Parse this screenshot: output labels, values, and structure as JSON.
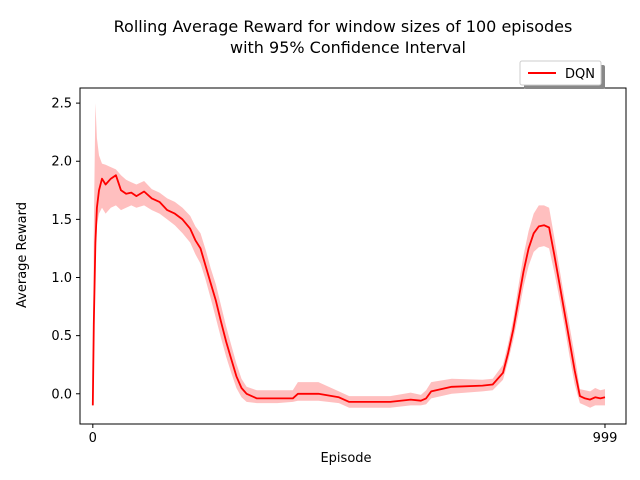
{
  "chart_data": {
    "type": "line",
    "title_line1": "Rolling Average Reward for window sizes of 100 episodes",
    "title_line2": "with 95% Confidence Interval",
    "xlabel": "Episode",
    "ylabel": "Average Reward",
    "xlim": [
      -25,
      1040
    ],
    "ylim": [
      -0.26,
      2.63
    ],
    "x_ticks": [
      0,
      999
    ],
    "x_tick_labels": [
      "0",
      "999"
    ],
    "y_ticks": [
      0.0,
      0.5,
      1.0,
      1.5,
      2.0,
      2.5
    ],
    "y_tick_labels": [
      "0.0",
      "0.5",
      "1.0",
      "1.5",
      "2.0",
      "2.5"
    ],
    "grid": false,
    "legend_position": "top-right, above axes",
    "series": [
      {
        "name": "DQN",
        "color": "#ff0000",
        "band_color": "#ff0000",
        "band_opacity": 0.25,
        "x": [
          0,
          2,
          5,
          8,
          12,
          18,
          25,
          35,
          45,
          55,
          65,
          75,
          85,
          100,
          115,
          130,
          145,
          160,
          175,
          190,
          200,
          210,
          220,
          230,
          240,
          250,
          260,
          270,
          280,
          290,
          300,
          320,
          360,
          390,
          400,
          440,
          480,
          500,
          540,
          580,
          620,
          640,
          650,
          660,
          700,
          760,
          780,
          800,
          810,
          820,
          830,
          840,
          850,
          860,
          870,
          880,
          890,
          900,
          910,
          920,
          930,
          940,
          950,
          960,
          970,
          980,
          990,
          999
        ],
        "y": [
          -0.1,
          0.6,
          1.3,
          1.6,
          1.75,
          1.85,
          1.8,
          1.85,
          1.88,
          1.75,
          1.72,
          1.73,
          1.7,
          1.74,
          1.68,
          1.65,
          1.58,
          1.55,
          1.5,
          1.42,
          1.32,
          1.25,
          1.1,
          0.95,
          0.8,
          0.62,
          0.45,
          0.3,
          0.15,
          0.05,
          0.0,
          -0.04,
          -0.04,
          -0.04,
          0.0,
          0.0,
          -0.03,
          -0.07,
          -0.07,
          -0.07,
          -0.05,
          -0.06,
          -0.04,
          0.02,
          0.06,
          0.07,
          0.08,
          0.18,
          0.35,
          0.55,
          0.8,
          1.05,
          1.25,
          1.38,
          1.44,
          1.45,
          1.43,
          1.2,
          0.95,
          0.7,
          0.45,
          0.2,
          -0.02,
          -0.04,
          -0.05,
          -0.03,
          -0.04,
          -0.03
        ],
        "lower": [
          -0.1,
          0.45,
          1.15,
          1.45,
          1.55,
          1.6,
          1.55,
          1.6,
          1.62,
          1.58,
          1.6,
          1.62,
          1.6,
          1.62,
          1.58,
          1.55,
          1.5,
          1.45,
          1.38,
          1.3,
          1.2,
          1.12,
          0.98,
          0.82,
          0.65,
          0.48,
          0.32,
          0.18,
          0.05,
          -0.03,
          -0.07,
          -0.08,
          -0.08,
          -0.07,
          -0.06,
          -0.06,
          -0.08,
          -0.12,
          -0.12,
          -0.12,
          -0.1,
          -0.1,
          -0.09,
          -0.04,
          0.0,
          0.02,
          0.03,
          0.12,
          0.28,
          0.46,
          0.68,
          0.92,
          1.1,
          1.22,
          1.26,
          1.27,
          1.25,
          1.05,
          0.82,
          0.58,
          0.32,
          0.08,
          -0.08,
          -0.1,
          -0.12,
          -0.1,
          -0.1,
          -0.1
        ],
        "upper": [
          -0.1,
          1.4,
          2.5,
          2.2,
          2.05,
          1.98,
          1.97,
          1.95,
          1.93,
          1.88,
          1.84,
          1.82,
          1.8,
          1.83,
          1.76,
          1.73,
          1.68,
          1.65,
          1.6,
          1.53,
          1.44,
          1.38,
          1.24,
          1.08,
          0.94,
          0.76,
          0.58,
          0.42,
          0.26,
          0.13,
          0.06,
          0.03,
          0.03,
          0.03,
          0.1,
          0.1,
          0.02,
          -0.02,
          -0.02,
          -0.02,
          0.01,
          -0.01,
          0.03,
          0.1,
          0.13,
          0.12,
          0.13,
          0.25,
          0.43,
          0.64,
          0.92,
          1.19,
          1.4,
          1.55,
          1.62,
          1.62,
          1.6,
          1.35,
          1.08,
          0.82,
          0.58,
          0.33,
          0.04,
          0.03,
          0.02,
          0.05,
          0.03,
          0.04
        ]
      }
    ]
  }
}
